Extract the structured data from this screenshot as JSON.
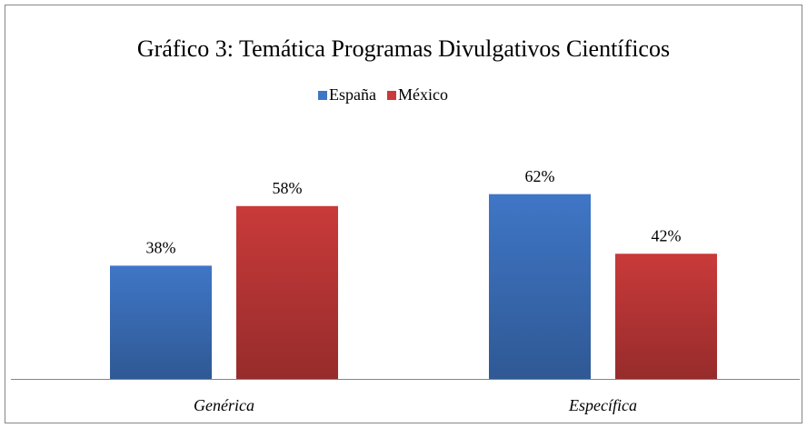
{
  "chart_data": {
    "type": "bar",
    "title": "Gráfico 3: Temática Programas Divulgativos Científicos",
    "categories": [
      "Genérica",
      "Específica"
    ],
    "series": [
      {
        "name": "España",
        "color": "#3f76c6",
        "values": [
          38,
          62
        ],
        "value_labels": [
          "38%",
          "62%"
        ]
      },
      {
        "name": "México",
        "color": "#c93a3a",
        "values": [
          58,
          42
        ],
        "value_labels": [
          "58%",
          "42%"
        ]
      }
    ],
    "legend": "top"
  }
}
